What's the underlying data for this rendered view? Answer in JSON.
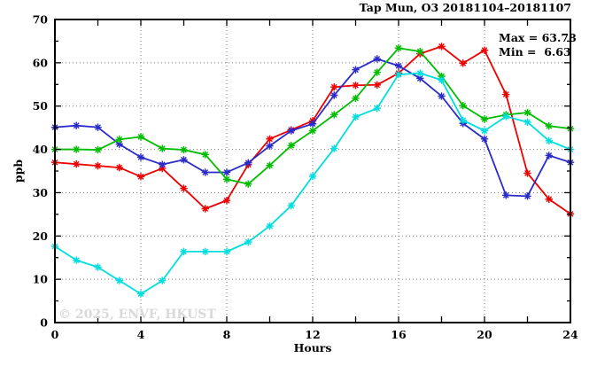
{
  "title": "Tap Mun, O3 20181104–20181107",
  "annotations": {
    "max_label": "Max = 63.78",
    "min_label": "Min =  6.63"
  },
  "watermark": "© 2025, ENVF, HKUST",
  "chart_data": {
    "type": "line",
    "title": "Tap Mun, O3 20181104–20181107",
    "xlabel": "Hours",
    "ylabel": "ppb",
    "xlim": [
      0,
      24
    ],
    "ylim": [
      0,
      70
    ],
    "x_major_ticks": [
      0,
      4,
      8,
      12,
      16,
      20,
      24
    ],
    "x_minor_step": 2,
    "y_major_ticks": [
      0,
      10,
      20,
      30,
      40,
      50,
      60,
      70
    ],
    "y_minor_step": 5,
    "grid": {
      "h_lines": [
        10,
        20,
        30,
        40,
        50,
        60
      ],
      "v_lines": [
        4,
        8,
        12,
        16,
        20
      ]
    },
    "legend_position": "none",
    "stats": {
      "max": 63.78,
      "min": 6.63
    },
    "marker": "asterisk",
    "x": [
      0,
      1,
      2,
      3,
      4,
      5,
      6,
      7,
      8,
      9,
      10,
      11,
      12,
      13,
      14,
      15,
      16,
      17,
      18,
      19,
      20,
      21,
      22,
      23,
      24
    ],
    "series": [
      {
        "name": "red",
        "color": "#ee0000",
        "values": [
          37.0,
          36.6,
          36.2,
          35.8,
          33.7,
          35.6,
          31.0,
          26.3,
          28.2,
          36.5,
          42.4,
          44.5,
          46.6,
          54.4,
          54.8,
          54.9,
          57.6,
          62.1,
          63.78,
          59.9,
          62.9,
          52.7,
          34.5,
          28.5,
          25.1
        ]
      },
      {
        "name": "blue",
        "color": "#2b2bca",
        "values": [
          45.1,
          45.5,
          45.1,
          41.2,
          38.2,
          36.5,
          37.6,
          34.7,
          34.7,
          36.9,
          40.8,
          44.3,
          45.9,
          52.5,
          58.4,
          60.9,
          59.3,
          56.4,
          52.3,
          46.0,
          42.4,
          29.4,
          29.2,
          38.6,
          37.0
        ]
      },
      {
        "name": "green",
        "color": "#00bd00",
        "values": [
          40.0,
          40.0,
          39.9,
          42.3,
          42.9,
          40.2,
          39.9,
          38.8,
          33.1,
          32.0,
          36.3,
          40.9,
          44.3,
          48.0,
          51.8,
          57.8,
          63.4,
          62.6,
          56.9,
          50.1,
          47.0,
          48.0,
          48.5,
          45.4,
          44.8
        ]
      },
      {
        "name": "cyan",
        "color": "#00dede",
        "values": [
          17.6,
          14.4,
          12.8,
          9.7,
          6.63,
          9.7,
          16.4,
          16.4,
          16.4,
          18.6,
          22.3,
          27.0,
          33.8,
          40.2,
          47.5,
          49.5,
          57.3,
          57.6,
          56.0,
          46.7,
          44.3,
          47.6,
          46.3,
          42.0,
          40.0
        ]
      }
    ]
  }
}
